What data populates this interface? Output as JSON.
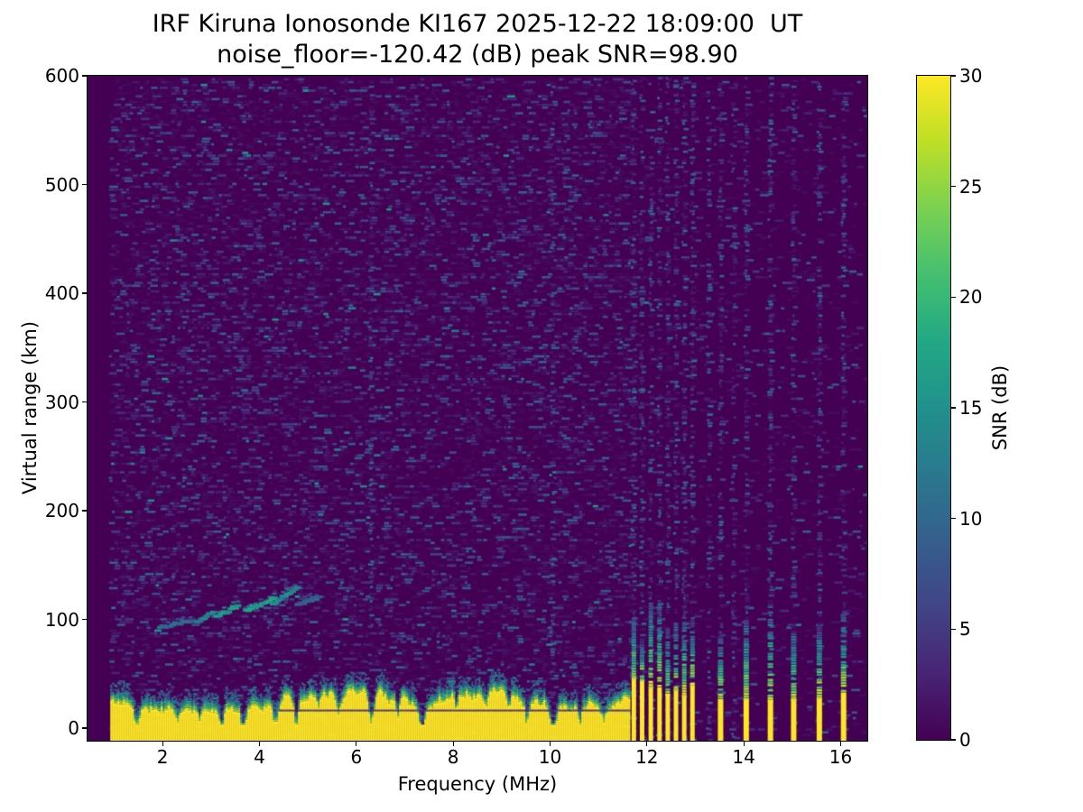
{
  "chart_data": {
    "type": "heatmap",
    "title": "IRF Kiruna Ionosonde KI167 2025-12-22 18:09:00  UT",
    "subtitle": "noise_floor=-120.42 (dB) peak SNR=98.90",
    "station": "IRF Kiruna Ionosonde KI167",
    "timestamp_ut": "2025-12-22 18:09:00",
    "noise_floor_db": -120.42,
    "peak_snr_db": 98.9,
    "xlabel": "Frequency (MHz)",
    "ylabel": "Virtual range (km)",
    "xlim": [
      0.45,
      16.55
    ],
    "ylim": [
      -11.6,
      600
    ],
    "xticks": [
      2,
      4,
      6,
      8,
      10,
      12,
      14,
      16
    ],
    "yticks": [
      0,
      100,
      200,
      300,
      400,
      500,
      600
    ],
    "grid": false,
    "colorbar": {
      "label": "SNR (dB)",
      "vmin": 0,
      "vmax": 30,
      "ticks": [
        0,
        5,
        10,
        15,
        20,
        25,
        30
      ],
      "colormap": "viridis",
      "stops": [
        "#440154",
        "#482475",
        "#414487",
        "#355f8d",
        "#2a788e",
        "#21918c",
        "#22a884",
        "#44bf70",
        "#7ad151",
        "#bddf26",
        "#fde725"
      ]
    },
    "features": {
      "noise_seed": 7,
      "data_start_mhz": 0.92,
      "background_noise": {
        "typical_snr_db": [
          0,
          8
        ],
        "description": "sparse horizontal speckle dashes of 2-8 dB over a 0 dB dark background; cleaner above 11.65 MHz"
      },
      "noise_columns_mhz": [
        6.3,
        10.05,
        13.28,
        13.8
      ],
      "ground_clutter": {
        "freq_range": [
          0.92,
          11.65
        ],
        "top_km_range": [
          27,
          46
        ],
        "solid_to_km": 22,
        "dark_line": {
          "km": 17,
          "freq_range": [
            4.35,
            11.65
          ]
        },
        "notches": [
          {
            "f": 1.45,
            "w": 0.06,
            "d": 16
          },
          {
            "f": 2.3,
            "w": 0.05,
            "d": 13
          },
          {
            "f": 2.75,
            "w": 0.05,
            "d": 11
          },
          {
            "f": 3.2,
            "w": 0.06,
            "d": 19
          },
          {
            "f": 3.65,
            "w": 0.06,
            "d": 21
          },
          {
            "f": 4.33,
            "w": 0.07,
            "d": 15
          },
          {
            "f": 4.75,
            "w": 0.06,
            "d": 24
          },
          {
            "f": 5.2,
            "w": 0.05,
            "d": 13
          },
          {
            "f": 5.62,
            "w": 0.05,
            "d": 11
          },
          {
            "f": 6.3,
            "w": 0.08,
            "d": 29
          },
          {
            "f": 6.85,
            "w": 0.05,
            "d": 13
          },
          {
            "f": 7.35,
            "w": 0.07,
            "d": 27
          },
          {
            "f": 8.05,
            "w": 0.05,
            "d": 15
          },
          {
            "f": 8.65,
            "w": 0.05,
            "d": 13
          },
          {
            "f": 9.15,
            "w": 0.05,
            "d": 11
          },
          {
            "f": 9.5,
            "w": 0.05,
            "d": 13
          },
          {
            "f": 10.05,
            "w": 0.08,
            "d": 25
          },
          {
            "f": 10.6,
            "w": 0.05,
            "d": 13
          },
          {
            "f": 11.1,
            "w": 0.05,
            "d": 11
          }
        ]
      },
      "echo_trace": {
        "description": "sporadic-E echo trace rising from ~95 km at 2 MHz to ~130 km at 4.8 MHz",
        "segments": [
          {
            "f": [
              1.95,
              2.62
            ],
            "km": [
              94,
              101
            ],
            "snr": 10
          },
          {
            "f": [
              2.72,
              3.05
            ],
            "km": [
              100,
              108
            ],
            "snr": 13
          },
          {
            "f": [
              3.12,
              3.55
            ],
            "km": [
              104,
              114
            ],
            "snr": 16
          },
          {
            "f": [
              3.72,
              4.3
            ],
            "km": [
              109,
              121
            ],
            "snr": 17
          },
          {
            "f": [
              4.28,
              4.78
            ],
            "km": [
              115,
              131
            ],
            "snr": 14
          },
          {
            "f": [
              4.8,
              5.22
            ],
            "km": [
              115,
              122
            ],
            "snr": 9
          }
        ]
      },
      "rfi_stripes": {
        "dense_mhz": [
          11.73,
          11.9,
          12.08,
          12.26,
          12.43,
          12.6,
          12.77,
          12.94
        ],
        "sparse_mhz": [
          13.52,
          14.05,
          14.55,
          15.03,
          15.56,
          16.06
        ],
        "yellow_top_km_dense": [
          30,
          48
        ],
        "yellow_top_km_sparse": [
          26,
          34
        ],
        "speckle_top_km": [
          80,
          120
        ]
      }
    }
  }
}
